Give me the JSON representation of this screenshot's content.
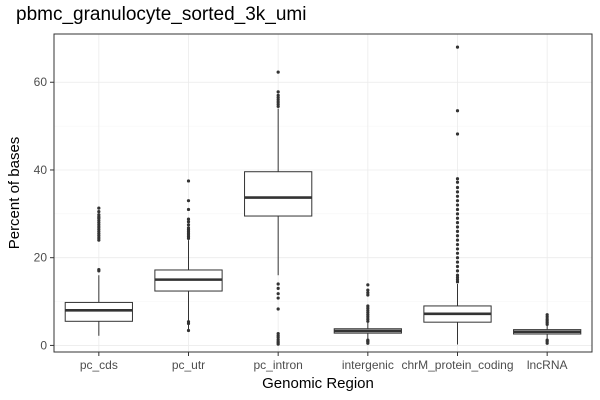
{
  "chart_data": {
    "type": "box",
    "title": "pbmc_granulocyte_sorted_3k_umi",
    "xlabel": "Genomic Region",
    "ylabel": "Percent of bases",
    "ylim": [
      -1.5,
      71
    ],
    "yticks": [
      0,
      20,
      40,
      60
    ],
    "grid": true,
    "categories": [
      "pc_cds",
      "pc_utr",
      "pc_intron",
      "intergenic",
      "chrM_protein_coding",
      "lncRNA"
    ],
    "boxes": [
      {
        "category": "pc_cds",
        "min": 2.2,
        "q1": 5.5,
        "median": 8.0,
        "q3": 9.8,
        "max": 16.0,
        "outliers": [
          17.0,
          17.3,
          24.0,
          24.5,
          25.0,
          25.5,
          26.0,
          26.5,
          27.0,
          27.5,
          28.0,
          28.5,
          29.0,
          29.3,
          29.8,
          30.5,
          31.3
        ]
      },
      {
        "category": "pc_utr",
        "min": 3.4,
        "q1": 12.4,
        "median": 15.0,
        "q3": 17.2,
        "max": 24.0,
        "outliers": [
          3.4,
          5.0,
          5.4,
          24.4,
          24.8,
          25.2,
          25.6,
          26.0,
          26.4,
          26.8,
          27.5,
          28.2,
          28.8,
          31.0,
          33.0,
          37.5
        ]
      },
      {
        "category": "pc_intron",
        "min": 16.0,
        "q1": 29.5,
        "median": 33.7,
        "q3": 39.6,
        "max": 54.0,
        "outliers": [
          0.3,
          0.6,
          0.9,
          1.3,
          1.8,
          2.2,
          2.7,
          8.3,
          10.8,
          11.8,
          13.0,
          14.0,
          54.5,
          55.0,
          55.5,
          56.0,
          56.5,
          57.0,
          57.8,
          62.3
        ]
      },
      {
        "category": "intergenic",
        "min": 1.5,
        "q1": 2.8,
        "median": 3.3,
        "q3": 3.8,
        "max": 5.2,
        "outliers": [
          0.5,
          0.8,
          1.0,
          1.2,
          5.5,
          6.0,
          6.5,
          7.0,
          7.5,
          8.0,
          8.5,
          9.0,
          11.5,
          12.0,
          12.6,
          13.8
        ]
      },
      {
        "category": "chrM_protein_coding",
        "min": 0.2,
        "q1": 5.3,
        "median": 7.2,
        "q3": 9.0,
        "max": 14.0,
        "outliers": [
          14.5,
          15.0,
          15.5,
          16.0,
          17.0,
          18.0,
          19.0,
          20.0,
          21.0,
          22.0,
          23.0,
          24.0,
          25.0,
          26.0,
          27.0,
          28.0,
          29.0,
          30.0,
          31.0,
          32.0,
          33.0,
          34.0,
          35.0,
          36.0,
          37.2,
          38.0,
          48.2,
          53.5,
          68.0
        ]
      },
      {
        "category": "lncRNA",
        "min": 1.5,
        "q1": 2.6,
        "median": 3.1,
        "q3": 3.6,
        "max": 4.5,
        "outliers": [
          0.5,
          0.9,
          1.2,
          4.8,
          5.2,
          5.6,
          6.0,
          6.5,
          7.0
        ]
      }
    ]
  }
}
